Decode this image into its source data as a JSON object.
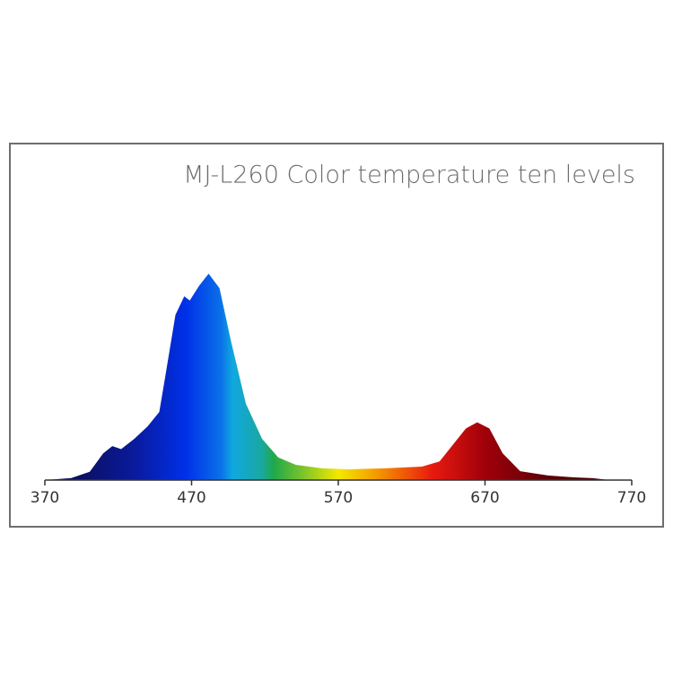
{
  "chart_data": {
    "type": "area",
    "title": "MJ-L260 Color temperature ten levels",
    "x": [
      370,
      388,
      400.6,
      409.8,
      416,
      422,
      431,
      440,
      448,
      452,
      459,
      465,
      468.8,
      475,
      481.6,
      489,
      497,
      507,
      518,
      529,
      541,
      559,
      577,
      602,
      627,
      639,
      648,
      657,
      664.7,
      673,
      682,
      694,
      713,
      731,
      743.6,
      755
    ],
    "values": [
      0,
      0.01,
      0.04,
      0.13,
      0.165,
      0.15,
      0.2,
      0.26,
      0.33,
      0.5,
      0.8,
      0.89,
      0.87,
      0.94,
      1.0,
      0.93,
      0.67,
      0.37,
      0.2,
      0.11,
      0.074,
      0.057,
      0.052,
      0.057,
      0.065,
      0.09,
      0.17,
      0.25,
      0.28,
      0.25,
      0.13,
      0.043,
      0.022,
      0.013,
      0.009,
      0
    ],
    "xlim": [
      370,
      770
    ],
    "xticks": [
      370,
      470,
      570,
      670,
      770
    ],
    "ylim": [
      0,
      1
    ]
  }
}
